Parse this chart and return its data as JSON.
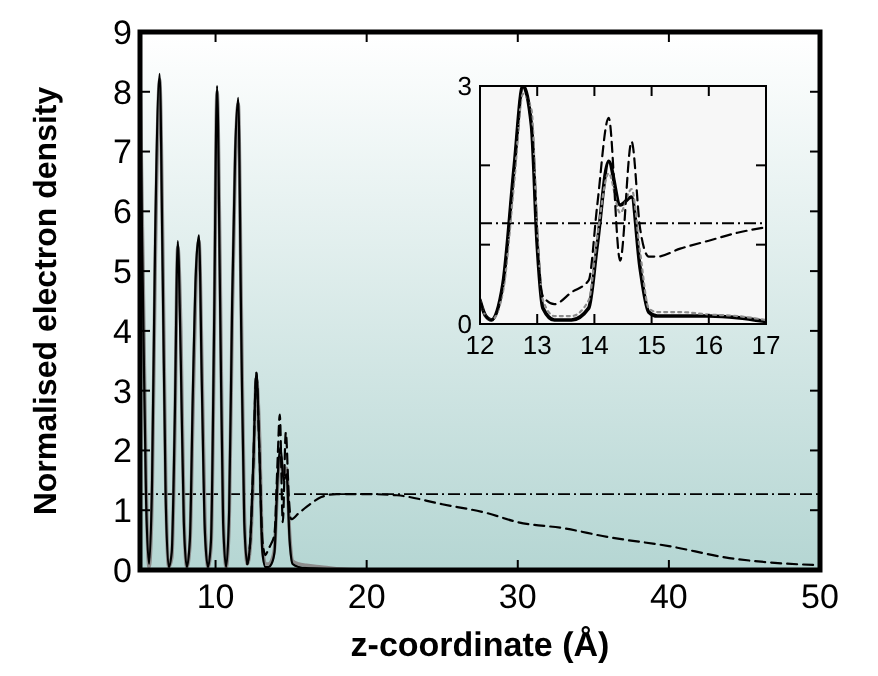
{
  "chart_data": [
    {
      "type": "line",
      "xlabel": "z-coordinate (Å)",
      "ylabel": "Normalised electron density",
      "xlim": [
        5,
        50
      ],
      "ylim": [
        0,
        9
      ],
      "xticks": [
        10,
        20,
        30,
        40,
        50
      ],
      "yticks": [
        0,
        1,
        2,
        3,
        4,
        5,
        6,
        7,
        8,
        9
      ],
      "grid": false,
      "x": [
        5,
        5.2,
        5.4,
        5.6,
        5.8,
        6.0,
        6.3,
        6.5,
        6.7,
        6.9,
        7.1,
        7.3,
        7.5,
        7.7,
        7.9,
        8.1,
        8.3,
        8.5,
        8.7,
        8.9,
        9.1,
        9.3,
        9.5,
        9.7,
        9.9,
        10.1,
        10.3,
        10.5,
        10.7,
        10.9,
        11.1,
        11.3,
        11.5,
        11.7,
        11.9,
        12.1,
        12.3,
        12.5,
        12.7,
        12.9,
        13.1,
        13.3,
        13.5,
        13.7,
        13.9,
        14.1,
        14.3,
        14.5,
        14.7,
        14.9,
        15.1,
        15.5,
        16,
        17,
        18,
        20
      ],
      "series": [
        {
          "color": "#8c8c8c",
          "line_style": "solid",
          "values": [
            8.3,
            5,
            1.5,
            0.05,
            1.2,
            5,
            8.2,
            5.5,
            1.5,
            0.05,
            0.2,
            2.2,
            5.4,
            4,
            1,
            0.05,
            0.4,
            2.6,
            4.8,
            5.5,
            3.4,
            0.8,
            0.05,
            0.4,
            3.6,
            8.0,
            5,
            1,
            0.05,
            0.8,
            4.2,
            6.8,
            7.8,
            4.4,
            1,
            0.1,
            0.4,
            1.6,
            3.2,
            2.3,
            0.4,
            0.1,
            0.1,
            0.15,
            0.35,
            1.4,
            1.9,
            1.6,
            1.7,
            0.6,
            0.15,
            0.1,
            0.08,
            0.05,
            0.02,
            0
          ]
        },
        {
          "color": "#000000",
          "line_style": "solid",
          "values": [
            8.0,
            4.5,
            1.2,
            0.1,
            1.5,
            5.5,
            8.3,
            5,
            1.2,
            0.05,
            0.3,
            2.5,
            5.5,
            3.5,
            0.8,
            0.05,
            0.5,
            3,
            5.0,
            5.6,
            3,
            0.6,
            0.05,
            0.5,
            4,
            8.1,
            4.5,
            0.8,
            0.05,
            1,
            4.5,
            7.0,
            7.9,
            4,
            0.8,
            0.1,
            0.5,
            1.8,
            3.3,
            2,
            0.3,
            0.05,
            0.05,
            0.1,
            0.3,
            1.5,
            2.05,
            1.5,
            1.6,
            0.5,
            0.1,
            0.05,
            0.03,
            0.02,
            0.01,
            0
          ]
        },
        {
          "color": "#000000",
          "line_style": "dashed",
          "x": [
            12.1,
            12.3,
            12.5,
            12.7,
            12.9,
            13.1,
            13.3,
            13.5,
            13.7,
            13.9,
            14.1,
            14.25,
            14.45,
            14.65,
            14.85,
            15,
            15.5,
            16,
            17,
            18,
            19,
            20,
            22,
            25,
            28,
            30,
            33,
            36,
            40,
            44,
            47,
            50
          ],
          "values": [
            0.1,
            0.5,
            1.8,
            3.3,
            2,
            0.5,
            0.25,
            0.35,
            0.45,
            0.6,
            1.8,
            2.6,
            0.8,
            2.3,
            1.2,
            0.85,
            0.95,
            1.05,
            1.22,
            1.27,
            1.27,
            1.27,
            1.25,
            1.1,
            0.95,
            0.8,
            0.7,
            0.55,
            0.4,
            0.2,
            0.12,
            0.08
          ]
        }
      ],
      "ref_lines": [
        {
          "axis": "y",
          "value": 1.27,
          "line_style": "dashed",
          "color": "#000000"
        }
      ]
    },
    {
      "type": "line",
      "xlim": [
        12,
        17
      ],
      "ylim": [
        0,
        3
      ],
      "xticks": [
        12,
        13,
        14,
        15,
        16,
        17
      ],
      "yticks": [
        0,
        {
          "value": 1,
          "label": null
        },
        {
          "value": 2,
          "label": null
        },
        3
      ],
      "grid": false,
      "x": [
        12,
        12.1,
        12.2,
        12.4,
        12.6,
        12.75,
        12.9,
        13.0,
        13.1,
        13.3,
        13.6,
        13.9,
        14.05,
        14.25,
        14.45,
        14.65,
        14.8,
        14.95,
        15.1,
        15.5,
        16,
        16.5,
        17
      ],
      "series": [
        {
          "color": "#000000",
          "line_style": "solid",
          "values": [
            0.3,
            0.1,
            0.05,
            0.5,
            2,
            3,
            2.5,
            1,
            0.2,
            0.05,
            0.05,
            0.2,
            1.0,
            2.05,
            1.5,
            1.6,
            0.7,
            0.15,
            0.1,
            0.1,
            0.1,
            0.08,
            0.03
          ]
        },
        {
          "color": "#8c8c8c",
          "line_style": "dotted",
          "values": [
            0.3,
            0.1,
            0.05,
            0.4,
            1.8,
            2.9,
            2.7,
            1.2,
            0.3,
            0.1,
            0.1,
            0.3,
            1.1,
            1.9,
            1.4,
            1.7,
            0.9,
            0.2,
            0.15,
            0.15,
            0.12,
            0.1,
            0.05
          ]
        },
        {
          "color": "#000000",
          "line_style": "dashed",
          "values": [
            0.3,
            0.1,
            0.05,
            0.5,
            2,
            3,
            2.5,
            1,
            0.35,
            0.25,
            0.4,
            0.55,
            1.5,
            2.6,
            0.8,
            2.3,
            1.2,
            0.85,
            0.85,
            0.95,
            1.05,
            1.15,
            1.22
          ]
        }
      ],
      "ref_lines": [
        {
          "axis": "y",
          "value": 1.27,
          "line_style": "dashed",
          "color": "#000000"
        }
      ]
    }
  ]
}
